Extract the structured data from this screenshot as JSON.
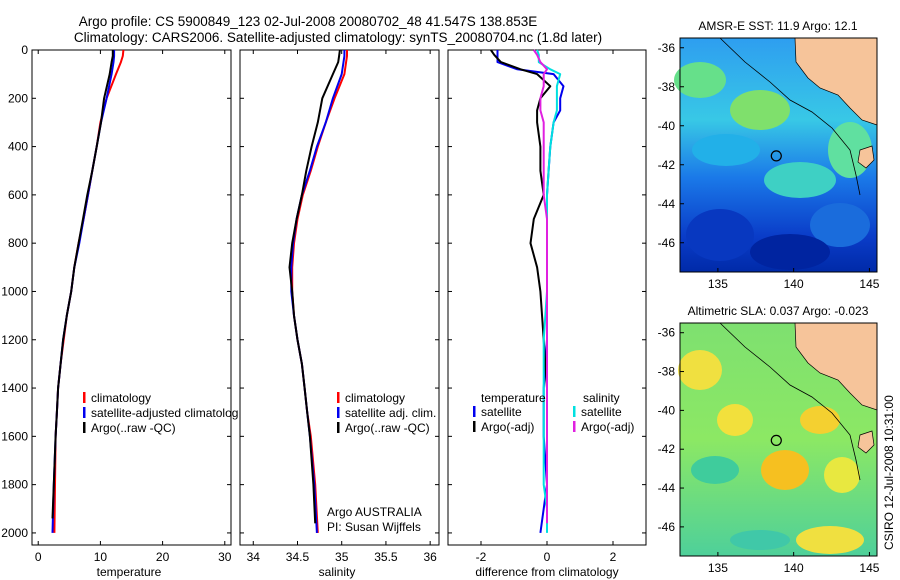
{
  "header": {
    "line1": "Argo profile: CS 5900849_123 02-Jul-2008 20080702_48 41.547S 138.853E",
    "line2": "Climatology: CARS2006. Satellite-adjusted climatology: synTS_20080704.nc (1.8d later)"
  },
  "colors": {
    "climatology": "#ff0000",
    "satellite": "#0000ee",
    "argo": "#000000",
    "argo_adj_salinity": "#e020e0",
    "satellite_salinity": "#00e0e0",
    "land": "#f6c49a"
  },
  "chart_data": [
    {
      "type": "line",
      "xlabel": "temperature",
      "xlim": [
        -1,
        31
      ],
      "ylim": [
        2050,
        0
      ],
      "xticks": [
        0,
        10,
        20,
        30
      ],
      "yticks": [
        0,
        200,
        400,
        600,
        800,
        1000,
        1200,
        1400,
        1600,
        1800,
        2000
      ],
      "legend": [
        "climatology",
        "satellite-adjusted climatolog",
        "Argo(..raw -QC)"
      ],
      "series": [
        {
          "name": "climatology",
          "color": "#ff0000",
          "x": [
            13.7,
            13.6,
            13.3,
            12.5,
            11.0,
            10.0,
            9.4,
            8.7,
            8.0,
            7.3,
            6.5,
            5.8,
            5.3,
            4.6,
            4.1,
            3.6,
            3.2,
            3.0,
            2.8,
            2.7,
            2.6
          ],
          "y": [
            0,
            25,
            50,
            100,
            200,
            300,
            400,
            500,
            600,
            700,
            800,
            900,
            1000,
            1100,
            1200,
            1300,
            1400,
            1500,
            1600,
            1800,
            2000
          ]
        },
        {
          "name": "satellite-adjusted climatolog",
          "color": "#0000ee",
          "x": [
            12.2,
            12.2,
            12.1,
            11.8,
            11.0,
            10.1,
            9.4,
            8.7,
            8.0,
            7.3,
            6.6,
            5.8,
            5.3,
            4.6,
            4.0,
            3.6,
            3.2,
            3.0,
            2.8,
            2.5,
            2.3
          ],
          "y": [
            0,
            25,
            50,
            100,
            200,
            300,
            400,
            500,
            600,
            700,
            800,
            900,
            1000,
            1100,
            1200,
            1300,
            1400,
            1500,
            1600,
            1800,
            2000
          ]
        },
        {
          "name": "Argo(..raw -QC)",
          "color": "#000000",
          "x": [
            12.0,
            12.0,
            11.8,
            11.5,
            10.6,
            10.1,
            9.4,
            8.7,
            7.9,
            7.2,
            6.5,
            5.8,
            5.3,
            4.6,
            4.0,
            3.6,
            3.2,
            3.0,
            2.8,
            2.5,
            2.3
          ],
          "y": [
            0,
            25,
            50,
            100,
            200,
            300,
            400,
            500,
            600,
            700,
            800,
            900,
            1000,
            1100,
            1200,
            1300,
            1400,
            1500,
            1600,
            1800,
            1940
          ]
        }
      ]
    },
    {
      "type": "line",
      "xlabel": "salinity",
      "xlim": [
        33.85,
        36.1
      ],
      "ylim": [
        2050,
        0
      ],
      "xticks": [
        34,
        34.5,
        35,
        35.5,
        36
      ],
      "legend": [
        "climatology",
        "satellite adj. clim.",
        "Argo(..raw -QC)"
      ],
      "annotation": [
        "Argo AUSTRALIA",
        "PI: Susan Wijffels"
      ],
      "series": [
        {
          "name": "climatology",
          "color": "#ff0000",
          "x": [
            35.06,
            35.06,
            35.05,
            35.03,
            34.92,
            34.82,
            34.73,
            34.65,
            34.56,
            34.5,
            34.46,
            34.44,
            34.44,
            34.46,
            34.5,
            34.55,
            34.58,
            34.61,
            34.65,
            34.7,
            34.73
          ],
          "y": [
            0,
            25,
            50,
            100,
            200,
            300,
            400,
            500,
            600,
            700,
            800,
            900,
            1000,
            1100,
            1200,
            1300,
            1400,
            1500,
            1600,
            1800,
            2000
          ]
        },
        {
          "name": "satellite adj. clim.",
          "color": "#0000ee",
          "x": [
            35.03,
            35.03,
            35.02,
            35.0,
            34.9,
            34.82,
            34.72,
            34.64,
            34.55,
            34.49,
            34.45,
            34.43,
            34.43,
            34.46,
            34.5,
            34.55,
            34.58,
            34.61,
            34.64,
            34.69,
            34.72
          ],
          "y": [
            0,
            25,
            50,
            100,
            200,
            300,
            400,
            500,
            600,
            700,
            800,
            900,
            1000,
            1100,
            1200,
            1300,
            1400,
            1500,
            1600,
            1800,
            2000
          ]
        },
        {
          "name": "Argo(..raw -QC)",
          "color": "#000000",
          "x": [
            34.98,
            34.97,
            34.96,
            34.9,
            34.78,
            34.73,
            34.66,
            34.6,
            34.55,
            34.49,
            34.44,
            34.41,
            34.44,
            34.46,
            34.5,
            34.55,
            34.58,
            34.61,
            34.64,
            34.68,
            34.7
          ],
          "y": [
            0,
            25,
            50,
            100,
            200,
            300,
            400,
            500,
            600,
            700,
            800,
            900,
            1000,
            1100,
            1200,
            1300,
            1400,
            1500,
            1600,
            1800,
            1960
          ]
        }
      ]
    },
    {
      "type": "line",
      "xlabel": "difference from climatology",
      "xlim": [
        -3,
        3
      ],
      "ylim": [
        2050,
        0
      ],
      "xticks": [
        -2,
        0,
        2
      ],
      "legend": [
        "temperature",
        "satellite",
        "Argo(-adj)",
        "salinity",
        "satellite",
        "Argo(-adj)"
      ],
      "series": [
        {
          "name": "temperature satellite",
          "color": "#0000ee",
          "x": [
            -1.5,
            -1.5,
            -1.5,
            -0.9,
            0.2,
            0.5,
            0.4,
            0.4,
            0.2,
            0.1,
            0.05,
            0.0,
            0.0,
            0.0,
            0.0,
            0.0,
            -0.1,
            -0.1,
            0.0,
            -0.1,
            -0.2
          ],
          "y": [
            0,
            20,
            50,
            80,
            100,
            150,
            200,
            250,
            300,
            400,
            500,
            600,
            700,
            800,
            1000,
            1200,
            1400,
            1600,
            1800,
            1900,
            2000
          ]
        },
        {
          "name": "temperature Argo(-adj)",
          "color": "#000000",
          "x": [
            -1.7,
            -1.6,
            -1.4,
            -0.8,
            -0.3,
            0.1,
            -0.2,
            -0.3,
            -0.3,
            -0.2,
            -0.2,
            -0.1,
            -0.4,
            -0.5,
            -0.3,
            -0.2,
            -0.1,
            0.0,
            0.0,
            0.0,
            0.0
          ],
          "y": [
            0,
            20,
            50,
            80,
            100,
            150,
            200,
            250,
            300,
            400,
            500,
            600,
            700,
            800,
            900,
            1000,
            1200,
            1400,
            1600,
            1800,
            1940
          ]
        },
        {
          "name": "salinity satellite",
          "color": "#00e0e0",
          "x": [
            -0.3,
            -0.25,
            -0.25,
            0.1,
            0.4,
            0.3,
            0.3,
            0.3,
            0.2,
            0.1,
            0.05,
            0.0,
            0.0,
            0.0,
            0.0,
            -0.1,
            -0.1,
            -0.1,
            -0.1,
            0.0,
            0.0
          ],
          "y": [
            0,
            20,
            50,
            80,
            100,
            150,
            200,
            250,
            300,
            400,
            500,
            600,
            700,
            800,
            1000,
            1200,
            1400,
            1600,
            1800,
            1900,
            2000
          ]
        },
        {
          "name": "salinity Argo(-adj)",
          "color": "#e020e0",
          "x": [
            -0.4,
            -0.3,
            -0.2,
            0.0,
            -0.1,
            -0.1,
            -0.2,
            -0.2,
            -0.1,
            -0.1,
            -0.1,
            -0.1,
            0.0,
            0.0,
            0.0,
            0.0,
            0.0,
            0.0,
            0.0,
            0.0,
            0.0
          ],
          "y": [
            0,
            20,
            50,
            80,
            100,
            150,
            200,
            250,
            300,
            400,
            500,
            600,
            700,
            800,
            900,
            1000,
            1200,
            1400,
            1600,
            1800,
            1960
          ]
        }
      ]
    },
    {
      "type": "heatmap",
      "title": "AMSR-E SST: 11.9 Argo: 12.1",
      "xlim": [
        132.5,
        145.5
      ],
      "ylim": [
        -47.5,
        -35.5
      ],
      "xticks": [
        135,
        140,
        145
      ],
      "yticks": [
        -36,
        -38,
        -40,
        -42,
        -44,
        -46
      ],
      "marker": {
        "lon": 138.853,
        "lat": -41.547
      }
    },
    {
      "type": "heatmap",
      "title": "Altimetric SLA: 0.037 Argo: -0.023",
      "xlim": [
        132.5,
        145.5
      ],
      "ylim": [
        -47.5,
        -35.5
      ],
      "xticks": [
        135,
        140,
        145
      ],
      "yticks": [
        -36,
        -38,
        -40,
        -42,
        -44,
        -46
      ],
      "marker": {
        "lon": 138.853,
        "lat": -41.547
      }
    }
  ],
  "footer": {
    "stamp": "CSIRO 12-Jul-2008 10:31:00"
  }
}
